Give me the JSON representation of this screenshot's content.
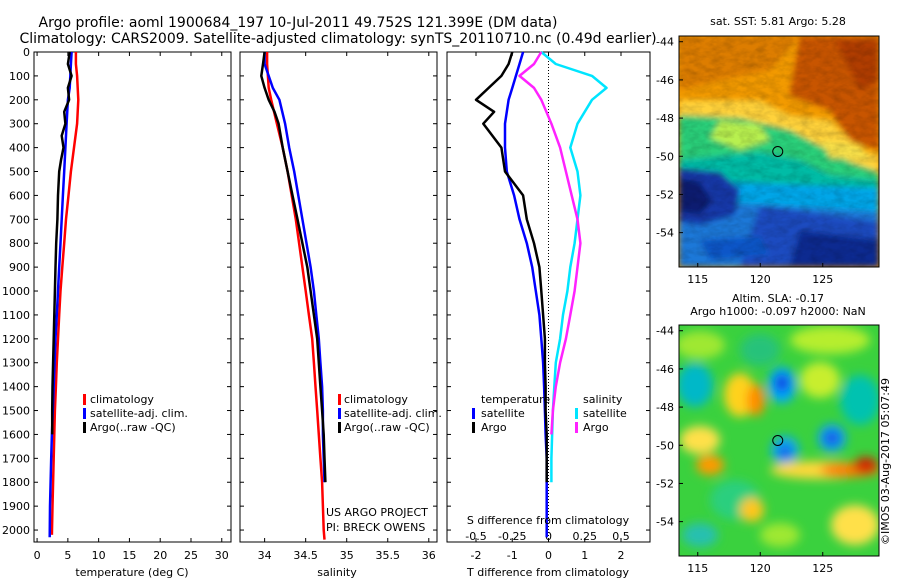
{
  "header": {
    "line1": "Argo profile: aoml 1900684_197 10-Jul-2011 49.752S 121.399E (DM data)",
    "line2": "Climatology: CARS2009. Satellite-adjusted climatology: synTS_20110710.nc (0.49d earlier)"
  },
  "colors": {
    "climatology": "#ff0000",
    "satellite": "#0000ff",
    "argo": "#000000",
    "sal_satellite": "#00e5ff",
    "sal_argo": "#ff22ff"
  },
  "chart_data": [
    {
      "type": "line",
      "id": "temperature",
      "xlabel": "temperature (deg C)",
      "ylabel": "",
      "xlim": [
        -0.5,
        31.5
      ],
      "ylim": [
        2050,
        0
      ],
      "xticks": [
        0,
        5,
        10,
        15,
        20,
        25,
        30
      ],
      "yticks": [
        0,
        100,
        200,
        300,
        400,
        500,
        600,
        700,
        800,
        900,
        1000,
        1100,
        1200,
        1300,
        1400,
        1500,
        1600,
        1700,
        1800,
        1900,
        2000
      ],
      "legend": [
        "climatology",
        "satellite-adj. clim.",
        "Argo(..raw -QC)"
      ],
      "series": [
        {
          "name": "climatology",
          "color": "#ff0000",
          "x": [
            6.3,
            6.3,
            6.5,
            6.7,
            6.5,
            6.0,
            5.5,
            5.1,
            4.7,
            4.4,
            4.1,
            3.8,
            3.6,
            3.4,
            3.2,
            3.05,
            2.9,
            2.8,
            2.7,
            2.6,
            2.5,
            2.4
          ],
          "y": [
            0,
            50,
            100,
            200,
            300,
            400,
            500,
            600,
            700,
            800,
            900,
            1000,
            1100,
            1200,
            1300,
            1400,
            1500,
            1600,
            1700,
            1800,
            1900,
            2020
          ]
        },
        {
          "name": "satellite",
          "color": "#0000ff",
          "x": [
            5.6,
            5.5,
            5.4,
            5.3,
            5.0,
            4.8,
            4.6,
            4.4,
            4.2,
            4.0,
            3.8,
            3.6,
            3.4,
            3.2,
            3.0,
            2.85,
            2.7,
            2.55,
            2.4,
            2.3,
            2.2,
            2.1,
            2.05
          ],
          "y": [
            0,
            50,
            100,
            150,
            200,
            300,
            400,
            500,
            600,
            700,
            800,
            900,
            1000,
            1100,
            1200,
            1300,
            1400,
            1500,
            1600,
            1700,
            1800,
            1900,
            2030
          ]
        },
        {
          "name": "Argo",
          "color": "#000000",
          "x": [
            5.3,
            5.0,
            5.6,
            5.0,
            5.2,
            4.4,
            4.6,
            4.0,
            4.3,
            3.9,
            3.6,
            3.4,
            3.3,
            3.1,
            3.0,
            2.9,
            2.8,
            2.7,
            2.6,
            2.5,
            2.45,
            2.45
          ],
          "y": [
            0,
            50,
            100,
            150,
            200,
            250,
            300,
            350,
            400,
            450,
            500,
            600,
            700,
            800,
            900,
            1000,
            1100,
            1200,
            1300,
            1400,
            1500,
            1600
          ]
        }
      ]
    },
    {
      "type": "line",
      "id": "salinity",
      "xlabel": "salinity",
      "ylabel": "",
      "xlim": [
        33.7,
        36.1
      ],
      "ylim": [
        2050,
        0
      ],
      "xticks": [
        34,
        34.5,
        35,
        35.5,
        36
      ],
      "xtick_labels": [
        "34",
        "34.5",
        "35",
        "35.5",
        "36"
      ],
      "legend": [
        "climatology",
        "satellite-adj. clim.",
        "Argo(..raw -QC)"
      ],
      "annotations": [
        "US ARGO PROJECT",
        "PI: BRECK OWENS"
      ],
      "series": [
        {
          "name": "climatology",
          "color": "#ff0000",
          "x": [
            34.03,
            34.03,
            34.04,
            34.05,
            34.08,
            34.15,
            34.22,
            34.28,
            34.33,
            34.38,
            34.42,
            34.46,
            34.5,
            34.54,
            34.58,
            34.6,
            34.62,
            34.64,
            34.66,
            34.68,
            34.7,
            34.71,
            34.72,
            34.73
          ],
          "y": [
            0,
            50,
            100,
            150,
            200,
            300,
            400,
            500,
            600,
            700,
            800,
            900,
            1000,
            1100,
            1200,
            1300,
            1400,
            1500,
            1600,
            1700,
            1800,
            1900,
            2000,
            2040
          ]
        },
        {
          "name": "satellite",
          "color": "#0000ff",
          "x": [
            34.0,
            34.0,
            34.05,
            34.1,
            34.18,
            34.25,
            34.3,
            34.36,
            34.41,
            34.46,
            34.51,
            34.56,
            34.6,
            34.63,
            34.66,
            34.68,
            34.7,
            34.71,
            34.71,
            34.72,
            34.73
          ],
          "y": [
            0,
            50,
            100,
            150,
            200,
            300,
            400,
            500,
            600,
            700,
            800,
            900,
            1000,
            1100,
            1200,
            1300,
            1400,
            1500,
            1600,
            1700,
            1800
          ]
        },
        {
          "name": "Argo",
          "color": "#000000",
          "x": [
            34.0,
            33.98,
            33.96,
            34.0,
            34.05,
            34.12,
            34.17,
            34.22,
            34.28,
            34.34,
            34.4,
            34.46,
            34.52,
            34.56,
            34.6,
            34.64,
            34.66,
            34.68,
            34.7,
            34.72,
            34.73,
            34.74
          ],
          "y": [
            0,
            50,
            100,
            150,
            200,
            250,
            300,
            400,
            500,
            600,
            700,
            800,
            900,
            1000,
            1100,
            1200,
            1300,
            1400,
            1500,
            1600,
            1700,
            1800
          ]
        }
      ]
    },
    {
      "type": "line",
      "id": "difference",
      "xlabel": "T difference from climatology",
      "xlabel_top": "S difference from climatology",
      "xlim": [
        -2.8,
        2.8
      ],
      "ylim": [
        2050,
        0
      ],
      "xticks": [
        -2,
        -1,
        0,
        1,
        2
      ],
      "xtick_labels": [
        "-2",
        "-1",
        "0",
        "1",
        "2"
      ],
      "s_xticks": [
        -0.5,
        -0.25,
        0,
        0.25,
        0.5
      ],
      "s_xtick_labels": [
        "-0.5",
        "-0.25",
        "0",
        "0.25",
        "0.5"
      ],
      "legend_titles": [
        "temperature",
        "salinity"
      ],
      "legend": [
        "satellite",
        "Argo",
        "satellite",
        "Argo"
      ],
      "series": [
        {
          "name": "satellite",
          "quantity": "temperature",
          "color": "#0000ff",
          "x": [
            -0.7,
            -0.8,
            -0.9,
            -1.0,
            -1.1,
            -1.2,
            -1.2,
            -1.15,
            -0.95,
            -0.8,
            -0.6,
            -0.45,
            -0.35,
            -0.25,
            -0.2,
            -0.15,
            -0.12,
            -0.1,
            -0.08,
            -0.05,
            -0.05
          ],
          "y": [
            0,
            50,
            100,
            150,
            200,
            300,
            400,
            500,
            600,
            700,
            800,
            900,
            1000,
            1100,
            1200,
            1300,
            1400,
            1500,
            1600,
            1700,
            2030
          ]
        },
        {
          "name": "Argo",
          "quantity": "temperature",
          "color": "#000000",
          "x": [
            -1.0,
            -1.1,
            -1.3,
            -2.0,
            -1.5,
            -1.8,
            -1.3,
            -1.2,
            -0.7,
            -0.6,
            -0.4,
            -0.25,
            -0.2,
            -0.15,
            -0.1,
            -0.1,
            -0.08,
            -0.08,
            -0.05,
            -0.05,
            -0.05
          ],
          "y": [
            0,
            50,
            100,
            200,
            250,
            300,
            400,
            500,
            600,
            700,
            800,
            900,
            1000,
            1100,
            1200,
            1300,
            1400,
            1500,
            1600,
            1700,
            1800
          ]
        },
        {
          "name": "satellite",
          "quantity": "salinity",
          "color": "#00e5ff",
          "x": [
            -0.05,
            0.05,
            0.3,
            0.4,
            0.3,
            0.2,
            0.15,
            0.2,
            0.22,
            0.2,
            0.18,
            0.15,
            0.13,
            0.1,
            0.08,
            0.05,
            0.04,
            0.03,
            0.02,
            0.02
          ],
          "y": [
            0,
            50,
            100,
            150,
            200,
            300,
            400,
            500,
            600,
            700,
            800,
            900,
            1000,
            1100,
            1200,
            1300,
            1400,
            1500,
            1700,
            1800
          ]
        },
        {
          "name": "Argo",
          "quantity": "salinity",
          "color": "#ff22ff",
          "x": [
            -0.05,
            -0.1,
            -0.2,
            -0.1,
            -0.05,
            0.02,
            0.08,
            0.12,
            0.16,
            0.2,
            0.22,
            0.2,
            0.18,
            0.15,
            0.12,
            0.08,
            0.05,
            0.03,
            0.02
          ],
          "y": [
            0,
            50,
            100,
            150,
            200,
            300,
            400,
            500,
            600,
            700,
            800,
            900,
            1000,
            1100,
            1200,
            1300,
            1400,
            1500,
            1600
          ]
        }
      ]
    },
    {
      "type": "heatmap",
      "id": "sst_map",
      "title": "sat. SST: 5.81  Argo: 5.28",
      "xlim": [
        113.5,
        129.5
      ],
      "ylim": [
        -55.8,
        -43.7
      ],
      "xticks": [
        115,
        120,
        125
      ],
      "yticks": [
        -44,
        -46,
        -48,
        -50,
        -52,
        -54
      ],
      "ytick_labels": [
        "-44",
        "-46",
        "-48",
        "-50",
        "-52",
        "-54"
      ],
      "marker": {
        "lon": 121.4,
        "lat": -49.75
      }
    },
    {
      "type": "heatmap",
      "id": "sla_map",
      "title": "Altim. SLA: -0.17",
      "subtitle": "Argo h1000: -0.097 h2000: NaN",
      "xlim": [
        113.5,
        129.5
      ],
      "ylim": [
        -55.8,
        -43.7
      ],
      "xticks": [
        115,
        120,
        125
      ],
      "yticks": [
        -44,
        -46,
        -48,
        -50,
        -52,
        -54
      ],
      "ytick_labels": [
        "-44",
        "-46",
        "-48",
        "-50",
        "-52",
        "-54"
      ],
      "marker": {
        "lon": 121.4,
        "lat": -49.75
      }
    }
  ],
  "credit": "©IMOS 03-Aug-2017 05:07:49"
}
